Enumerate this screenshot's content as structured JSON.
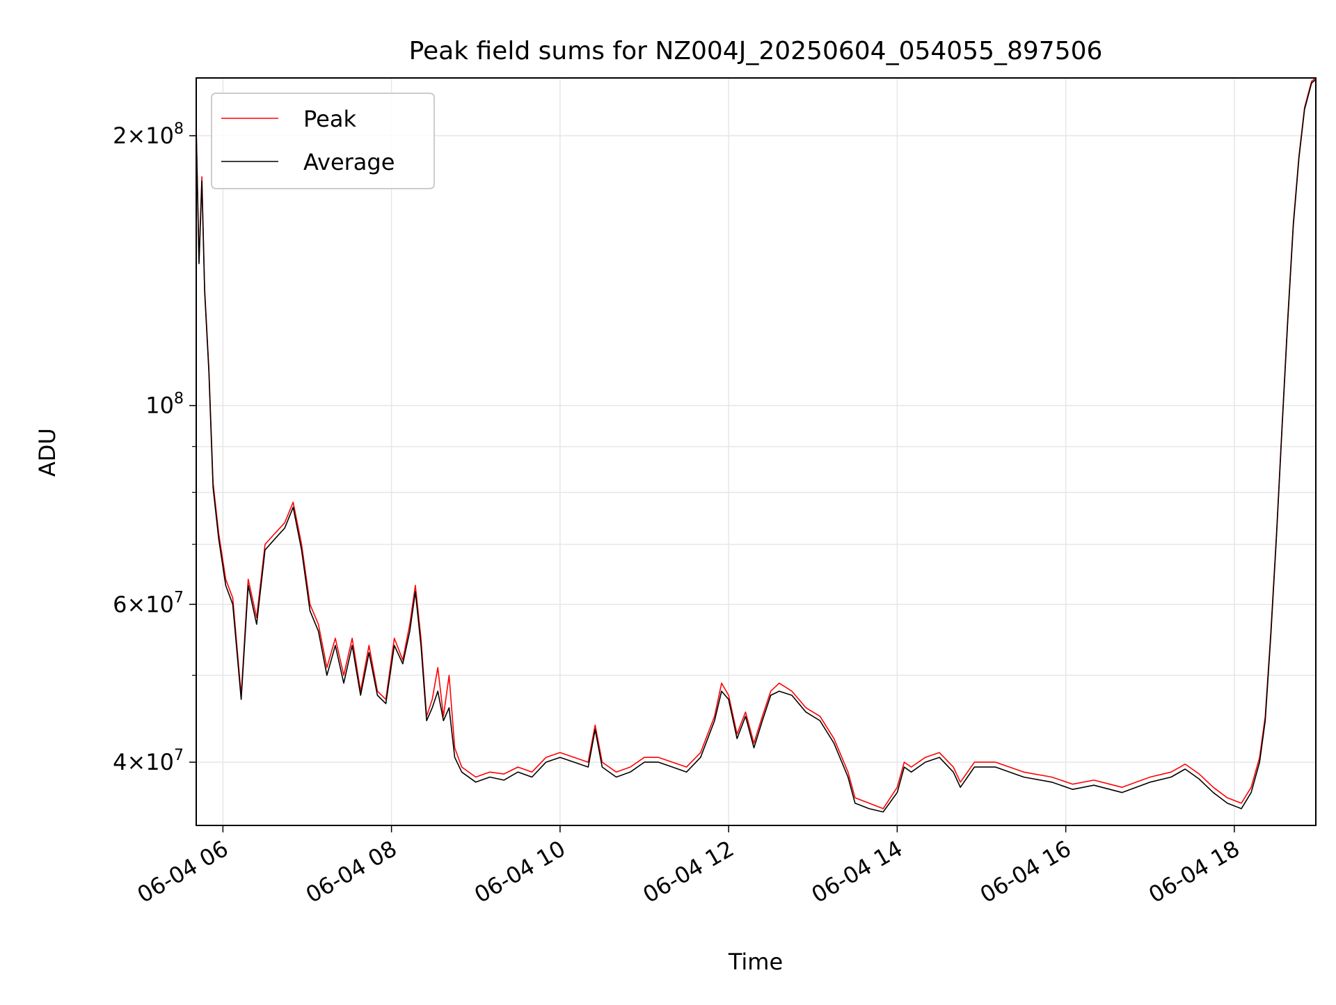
{
  "chart_data": {
    "type": "line",
    "title": "Peak field sums for NZ004J_20250604_054055_897506",
    "xlabel": "Time",
    "ylabel": "ADU",
    "yscale": "log",
    "ylim": [
      34000000,
      232000000
    ],
    "xlim": [
      "06-04 05:41",
      "06-04 18:58"
    ],
    "grid": true,
    "legend_position": "upper-left",
    "x_ticks": [
      "06-04 06",
      "06-04 08",
      "06-04 10",
      "06-04 12",
      "06-04 14",
      "06-04 16",
      "06-04 18"
    ],
    "y_ticks": [
      {
        "value": 40000000,
        "base": "4",
        "exp": "7"
      },
      {
        "value": 60000000,
        "base": "6",
        "exp": "7"
      },
      {
        "value": 100000000,
        "base": "",
        "exp": "8"
      },
      {
        "value": 200000000,
        "base": "2",
        "exp": "8"
      }
    ],
    "colors": {
      "peak": "#ff0000",
      "average": "#000000",
      "grid": "#e6e6e6"
    },
    "series": [
      {
        "name": "Peak",
        "color": "#ff0000",
        "points": [
          [
            "06-04 05:41",
            205000000
          ],
          [
            "06-04 05:43",
            145000000
          ],
          [
            "06-04 05:45",
            180000000
          ],
          [
            "06-04 05:47",
            135000000
          ],
          [
            "06-04 05:50",
            110000000
          ],
          [
            "06-04 05:53",
            82000000
          ],
          [
            "06-04 05:57",
            72000000
          ],
          [
            "06-04 06:02",
            64000000
          ],
          [
            "06-04 06:07",
            61000000
          ],
          [
            "06-04 06:13",
            47500000
          ],
          [
            "06-04 06:18",
            64000000
          ],
          [
            "06-04 06:24",
            58000000
          ],
          [
            "06-04 06:30",
            70000000
          ],
          [
            "06-04 06:37",
            72000000
          ],
          [
            "06-04 06:44",
            74000000
          ],
          [
            "06-04 06:50",
            78000000
          ],
          [
            "06-04 06:56",
            70000000
          ],
          [
            "06-04 07:02",
            60000000
          ],
          [
            "06-04 07:08",
            57000000
          ],
          [
            "06-04 07:14",
            51000000
          ],
          [
            "06-04 07:20",
            55000000
          ],
          [
            "06-04 07:26",
            50000000
          ],
          [
            "06-04 07:32",
            55000000
          ],
          [
            "06-04 07:38",
            48000000
          ],
          [
            "06-04 07:44",
            54000000
          ],
          [
            "06-04 07:50",
            48000000
          ],
          [
            "06-04 07:56",
            47000000
          ],
          [
            "06-04 08:02",
            55000000
          ],
          [
            "06-04 08:08",
            52000000
          ],
          [
            "06-04 08:13",
            57000000
          ],
          [
            "06-04 08:17",
            63000000
          ],
          [
            "06-04 08:21",
            55000000
          ],
          [
            "06-04 08:25",
            45000000
          ],
          [
            "06-04 08:29",
            47000000
          ],
          [
            "06-04 08:33",
            51000000
          ],
          [
            "06-04 08:37",
            45000000
          ],
          [
            "06-04 08:41",
            50000000
          ],
          [
            "06-04 08:45",
            41500000
          ],
          [
            "06-04 08:50",
            39500000
          ],
          [
            "06-04 09:00",
            38500000
          ],
          [
            "06-04 09:10",
            39000000
          ],
          [
            "06-04 09:20",
            38800000
          ],
          [
            "06-04 09:30",
            39500000
          ],
          [
            "06-04 09:40",
            39000000
          ],
          [
            "06-04 09:50",
            40500000
          ],
          [
            "06-04 10:00",
            41000000
          ],
          [
            "06-04 10:10",
            40500000
          ],
          [
            "06-04 10:20",
            40000000
          ],
          [
            "06-04 10:25",
            44000000
          ],
          [
            "06-04 10:30",
            40000000
          ],
          [
            "06-04 10:40",
            39000000
          ],
          [
            "06-04 10:50",
            39500000
          ],
          [
            "06-04 11:00",
            40500000
          ],
          [
            "06-04 11:10",
            40500000
          ],
          [
            "06-04 11:20",
            40000000
          ],
          [
            "06-04 11:30",
            39500000
          ],
          [
            "06-04 11:40",
            41000000
          ],
          [
            "06-04 11:50",
            45000000
          ],
          [
            "06-04 11:55",
            49000000
          ],
          [
            "06-04 12:00",
            47500000
          ],
          [
            "06-04 12:06",
            43000000
          ],
          [
            "06-04 12:12",
            45500000
          ],
          [
            "06-04 12:18",
            42000000
          ],
          [
            "06-04 12:24",
            45000000
          ],
          [
            "06-04 12:30",
            48000000
          ],
          [
            "06-04 12:36",
            49000000
          ],
          [
            "06-04 12:45",
            48000000
          ],
          [
            "06-04 12:55",
            46000000
          ],
          [
            "06-04 13:05",
            45000000
          ],
          [
            "06-04 13:15",
            42500000
          ],
          [
            "06-04 13:25",
            39000000
          ],
          [
            "06-04 13:30",
            36500000
          ],
          [
            "06-04 13:40",
            36000000
          ],
          [
            "06-04 13:50",
            35500000
          ],
          [
            "06-04 14:00",
            37500000
          ],
          [
            "06-04 14:05",
            40000000
          ],
          [
            "06-04 14:10",
            39500000
          ],
          [
            "06-04 14:20",
            40500000
          ],
          [
            "06-04 14:30",
            41000000
          ],
          [
            "06-04 14:40",
            39500000
          ],
          [
            "06-04 14:45",
            38000000
          ],
          [
            "06-04 14:55",
            40000000
          ],
          [
            "06-04 15:10",
            40000000
          ],
          [
            "06-04 15:30",
            39000000
          ],
          [
            "06-04 15:50",
            38500000
          ],
          [
            "06-04 16:05",
            37800000
          ],
          [
            "06-04 16:20",
            38200000
          ],
          [
            "06-04 16:40",
            37500000
          ],
          [
            "06-04 17:00",
            38500000
          ],
          [
            "06-04 17:15",
            39000000
          ],
          [
            "06-04 17:25",
            39800000
          ],
          [
            "06-04 17:35",
            38800000
          ],
          [
            "06-04 17:45",
            37500000
          ],
          [
            "06-04 17:55",
            36500000
          ],
          [
            "06-04 18:05",
            36000000
          ],
          [
            "06-04 18:12",
            37500000
          ],
          [
            "06-04 18:18",
            40500000
          ],
          [
            "06-04 18:22",
            45000000
          ],
          [
            "06-04 18:26",
            56000000
          ],
          [
            "06-04 18:30",
            72000000
          ],
          [
            "06-04 18:34",
            95000000
          ],
          [
            "06-04 18:38",
            125000000
          ],
          [
            "06-04 18:42",
            160000000
          ],
          [
            "06-04 18:46",
            190000000
          ],
          [
            "06-04 18:50",
            215000000
          ],
          [
            "06-04 18:55",
            230000000
          ],
          [
            "06-04 18:58",
            232000000
          ]
        ]
      },
      {
        "name": "Average",
        "color": "#000000",
        "points": [
          [
            "06-04 05:41",
            203000000
          ],
          [
            "06-04 05:43",
            144000000
          ],
          [
            "06-04 05:45",
            178000000
          ],
          [
            "06-04 05:47",
            134000000
          ],
          [
            "06-04 05:50",
            109000000
          ],
          [
            "06-04 05:53",
            81000000
          ],
          [
            "06-04 05:57",
            71000000
          ],
          [
            "06-04 06:02",
            63000000
          ],
          [
            "06-04 06:07",
            60000000
          ],
          [
            "06-04 06:13",
            47000000
          ],
          [
            "06-04 06:18",
            63000000
          ],
          [
            "06-04 06:24",
            57000000
          ],
          [
            "06-04 06:30",
            69000000
          ],
          [
            "06-04 06:37",
            71000000
          ],
          [
            "06-04 06:44",
            73000000
          ],
          [
            "06-04 06:50",
            77000000
          ],
          [
            "06-04 06:56",
            69000000
          ],
          [
            "06-04 07:02",
            59000000
          ],
          [
            "06-04 07:08",
            56000000
          ],
          [
            "06-04 07:14",
            50000000
          ],
          [
            "06-04 07:20",
            54000000
          ],
          [
            "06-04 07:26",
            49000000
          ],
          [
            "06-04 07:32",
            54000000
          ],
          [
            "06-04 07:38",
            47500000
          ],
          [
            "06-04 07:44",
            53000000
          ],
          [
            "06-04 07:50",
            47500000
          ],
          [
            "06-04 07:56",
            46500000
          ],
          [
            "06-04 08:02",
            54000000
          ],
          [
            "06-04 08:08",
            51500000
          ],
          [
            "06-04 08:13",
            56000000
          ],
          [
            "06-04 08:17",
            62000000
          ],
          [
            "06-04 08:21",
            54000000
          ],
          [
            "06-04 08:25",
            44500000
          ],
          [
            "06-04 08:29",
            46000000
          ],
          [
            "06-04 08:33",
            48000000
          ],
          [
            "06-04 08:37",
            44500000
          ],
          [
            "06-04 08:41",
            46000000
          ],
          [
            "06-04 08:45",
            40500000
          ],
          [
            "06-04 08:50",
            39000000
          ],
          [
            "06-04 09:00",
            38000000
          ],
          [
            "06-04 09:10",
            38500000
          ],
          [
            "06-04 09:20",
            38200000
          ],
          [
            "06-04 09:30",
            39000000
          ],
          [
            "06-04 09:40",
            38500000
          ],
          [
            "06-04 09:50",
            40000000
          ],
          [
            "06-04 10:00",
            40500000
          ],
          [
            "06-04 10:10",
            40000000
          ],
          [
            "06-04 10:20",
            39500000
          ],
          [
            "06-04 10:25",
            43500000
          ],
          [
            "06-04 10:30",
            39500000
          ],
          [
            "06-04 10:40",
            38500000
          ],
          [
            "06-04 10:50",
            39000000
          ],
          [
            "06-04 11:00",
            40000000
          ],
          [
            "06-04 11:10",
            40000000
          ],
          [
            "06-04 11:20",
            39500000
          ],
          [
            "06-04 11:30",
            39000000
          ],
          [
            "06-04 11:40",
            40500000
          ],
          [
            "06-04 11:50",
            44500000
          ],
          [
            "06-04 11:55",
            48000000
          ],
          [
            "06-04 12:00",
            47000000
          ],
          [
            "06-04 12:06",
            42500000
          ],
          [
            "06-04 12:12",
            45000000
          ],
          [
            "06-04 12:18",
            41500000
          ],
          [
            "06-04 12:24",
            44500000
          ],
          [
            "06-04 12:30",
            47500000
          ],
          [
            "06-04 12:36",
            48000000
          ],
          [
            "06-04 12:45",
            47500000
          ],
          [
            "06-04 12:55",
            45500000
          ],
          [
            "06-04 13:05",
            44500000
          ],
          [
            "06-04 13:15",
            42000000
          ],
          [
            "06-04 13:25",
            38500000
          ],
          [
            "06-04 13:30",
            36000000
          ],
          [
            "06-04 13:40",
            35500000
          ],
          [
            "06-04 13:50",
            35200000
          ],
          [
            "06-04 14:00",
            37000000
          ],
          [
            "06-04 14:05",
            39500000
          ],
          [
            "06-04 14:10",
            39000000
          ],
          [
            "06-04 14:20",
            40000000
          ],
          [
            "06-04 14:30",
            40500000
          ],
          [
            "06-04 14:40",
            39000000
          ],
          [
            "06-04 14:45",
            37500000
          ],
          [
            "06-04 14:55",
            39500000
          ],
          [
            "06-04 15:10",
            39500000
          ],
          [
            "06-04 15:30",
            38500000
          ],
          [
            "06-04 15:50",
            38000000
          ],
          [
            "06-04 16:05",
            37300000
          ],
          [
            "06-04 16:20",
            37700000
          ],
          [
            "06-04 16:40",
            37000000
          ],
          [
            "06-04 17:00",
            38000000
          ],
          [
            "06-04 17:15",
            38500000
          ],
          [
            "06-04 17:25",
            39300000
          ],
          [
            "06-04 17:35",
            38300000
          ],
          [
            "06-04 17:45",
            37000000
          ],
          [
            "06-04 17:55",
            36000000
          ],
          [
            "06-04 18:05",
            35500000
          ],
          [
            "06-04 18:12",
            37000000
          ],
          [
            "06-04 18:18",
            40000000
          ],
          [
            "06-04 18:22",
            44500000
          ],
          [
            "06-04 18:26",
            55500000
          ],
          [
            "06-04 18:30",
            71500000
          ],
          [
            "06-04 18:34",
            94500000
          ],
          [
            "06-04 18:38",
            124000000
          ],
          [
            "06-04 18:42",
            159000000
          ],
          [
            "06-04 18:46",
            189000000
          ],
          [
            "06-04 18:50",
            214000000
          ],
          [
            "06-04 18:55",
            229000000
          ],
          [
            "06-04 18:58",
            231000000
          ]
        ]
      }
    ]
  }
}
